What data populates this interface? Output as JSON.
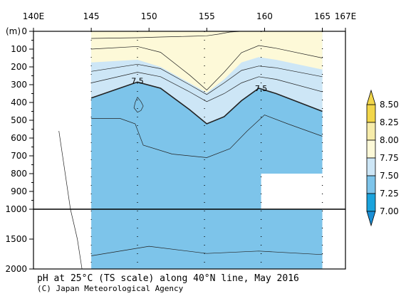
{
  "chart_data": {
    "type": "contour-section",
    "title": "pH at 25°C (TS scale) along 40°N line, May 2016",
    "credit": "(C) Japan Meteorological Agency",
    "x_axis": {
      "ticks": [
        140,
        145,
        150,
        155,
        160,
        165,
        167
      ],
      "tick_labels": [
        "140E",
        "145",
        "150",
        "155",
        "160",
        "165",
        "167E"
      ],
      "range": [
        140,
        167
      ]
    },
    "y_axis": {
      "label": "(m)",
      "ticks_upper": [
        0,
        100,
        200,
        300,
        400,
        500,
        600,
        700,
        800,
        900,
        1000
      ],
      "ticks_lower": [
        1500,
        2000
      ],
      "tick_labels": [
        "0",
        "100",
        "200",
        "300",
        "400",
        "500",
        "600",
        "700",
        "800",
        "900",
        "1000",
        "1500",
        "2000"
      ],
      "range": [
        0,
        2000
      ],
      "break_depth": 1000
    },
    "station_longitudes": [
      149,
      154.8,
      159.7,
      165
    ],
    "data_lon_range": [
      145,
      165
    ],
    "colorbar": {
      "levels": [
        "8.50",
        "8.25",
        "8.00",
        "7.75",
        "7.50",
        "7.25",
        "7.00"
      ],
      "colors": [
        "#f2d64a",
        "#f7ecaa",
        "#fdf9d8",
        "#cde6f6",
        "#7dc4ea",
        "#1aa3dc"
      ]
    },
    "contours": [
      {
        "level": 7.9,
        "points": [
          [
            145,
            40
          ],
          [
            149,
            36
          ],
          [
            151,
            32
          ],
          [
            153.5,
            28
          ],
          [
            155,
            25
          ],
          [
            156,
            16
          ],
          [
            157,
            4
          ],
          [
            158,
            0
          ]
        ]
      },
      {
        "level": 7.9,
        "points": [
          [
            158,
            0
          ],
          [
            165,
            0
          ]
        ]
      },
      {
        "level": 7.8,
        "points": [
          [
            145,
            100
          ],
          [
            149,
            85
          ],
          [
            151,
            118
          ],
          [
            153.5,
            245
          ],
          [
            155,
            330
          ],
          [
            156.5,
            230
          ],
          [
            158,
            120
          ],
          [
            159.5,
            80
          ],
          [
            161,
            95
          ],
          [
            165,
            150
          ]
        ]
      },
      {
        "level": 7.7,
        "points": [
          [
            145,
            225
          ],
          [
            149,
            185
          ],
          [
            151,
            210
          ],
          [
            153.5,
            300
          ],
          [
            155,
            355
          ],
          [
            156.5,
            290
          ],
          [
            158,
            220
          ],
          [
            159.5,
            195
          ],
          [
            161,
            205
          ],
          [
            165,
            255
          ]
        ]
      },
      {
        "level": 7.6,
        "points": [
          [
            145,
            290
          ],
          [
            147,
            260
          ],
          [
            149,
            230
          ],
          [
            151,
            255
          ],
          [
            153.5,
            340
          ],
          [
            155,
            395
          ],
          [
            156.5,
            350
          ],
          [
            158,
            290
          ],
          [
            159.5,
            255
          ],
          [
            161,
            270
          ],
          [
            165,
            340
          ]
        ]
      },
      {
        "level": 7.5,
        "points": [
          [
            145,
            375
          ],
          [
            147,
            330
          ],
          [
            149,
            285
          ],
          [
            151,
            320
          ],
          [
            153.5,
            440
          ],
          [
            155,
            520
          ],
          [
            156.5,
            480
          ],
          [
            158,
            390
          ],
          [
            159.5,
            320
          ],
          [
            161,
            350
          ],
          [
            165,
            450
          ]
        ],
        "bold": true,
        "label": "7.5",
        "label_lon": 149,
        "label_depth": 278,
        "label2_lon": 159.7,
        "label2_depth": 320
      },
      {
        "level": 7.4,
        "points": [
          [
            145,
            490
          ],
          [
            147.5,
            490
          ],
          [
            148.8,
            520
          ],
          [
            149.5,
            640
          ],
          [
            152,
            690
          ],
          [
            155,
            710
          ],
          [
            157,
            660
          ],
          [
            158.5,
            560
          ],
          [
            160,
            470
          ],
          [
            162,
            520
          ],
          [
            165,
            590
          ]
        ]
      },
      {
        "level": 7.4,
        "points": [
          [
            149,
            370
          ],
          [
            149.3,
            395
          ],
          [
            149.5,
            420
          ],
          [
            149.3,
            445
          ],
          [
            149,
            455
          ],
          [
            148.7,
            430
          ],
          [
            148.8,
            400
          ],
          [
            149,
            370
          ]
        ]
      },
      {
        "level": 7.3,
        "points": [
          [
            145,
            1780
          ],
          [
            150,
            1620
          ],
          [
            155,
            1740
          ],
          [
            159.5,
            1700
          ],
          [
            165,
            1760
          ]
        ]
      },
      {
        "level": 7.4,
        "points": [
          [
            142.2,
            560
          ],
          [
            143.2,
            1000
          ],
          [
            143.5,
            1250
          ],
          [
            143.8,
            1500
          ],
          [
            144.2,
            2000
          ]
        ],
        "context": true
      }
    ],
    "data_regions": {
      "background_top_depth": 0,
      "light_yellow_top": [
        [
          145,
          0
        ],
        [
          165,
          0
        ]
      ],
      "white_missing": {
        "lon": [
          159.7,
          165
        ],
        "depth": [
          800,
          1000
        ]
      }
    }
  }
}
